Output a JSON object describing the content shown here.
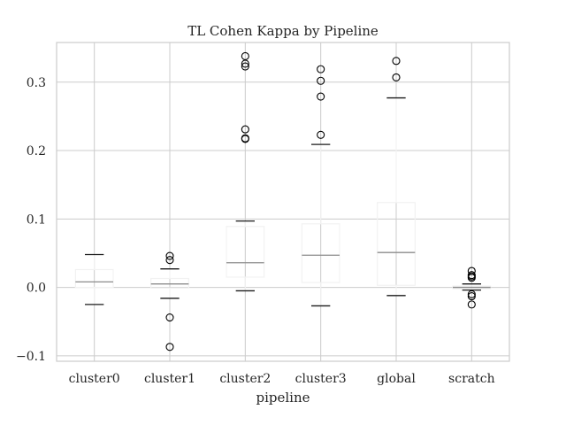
{
  "chart_data": {
    "type": "box",
    "title": "TL Cohen Kappa by Pipeline",
    "xlabel": "pipeline",
    "ylabel": "",
    "ylim": [
      -0.108,
      0.358
    ],
    "yticks": [
      "−0.1",
      "0.0",
      "0.1",
      "0.2",
      "0.3"
    ],
    "ytick_values": [
      -0.1,
      0.0,
      0.1,
      0.2,
      0.3
    ],
    "grid": true,
    "categories": [
      "cluster0",
      "cluster1",
      "cluster2",
      "cluster3",
      "global",
      "scratch"
    ],
    "boxes": [
      {
        "category": "cluster0",
        "whisker_low": -0.025,
        "q1": 0.0,
        "median": 0.008,
        "q3": 0.026,
        "whisker_high": 0.048,
        "outliers": []
      },
      {
        "category": "cluster1",
        "whisker_low": -0.016,
        "q1": -0.001,
        "median": 0.005,
        "q3": 0.013,
        "whisker_high": 0.027,
        "outliers": [
          0.046,
          0.04,
          -0.044,
          -0.087
        ]
      },
      {
        "category": "cluster2",
        "whisker_low": -0.005,
        "q1": 0.015,
        "median": 0.036,
        "q3": 0.089,
        "whisker_high": 0.097,
        "outliers": [
          0.338,
          0.327,
          0.323,
          0.231,
          0.218,
          0.217
        ]
      },
      {
        "category": "cluster3",
        "whisker_low": -0.027,
        "q1": 0.007,
        "median": 0.047,
        "q3": 0.093,
        "whisker_high": 0.209,
        "outliers": [
          0.319,
          0.302,
          0.279,
          0.223
        ]
      },
      {
        "category": "global",
        "whisker_low": -0.012,
        "q1": 0.003,
        "median": 0.051,
        "q3": 0.124,
        "whisker_high": 0.277,
        "outliers": [
          0.331,
          0.307
        ]
      },
      {
        "category": "scratch",
        "whisker_low": -0.004,
        "q1": -0.002,
        "median": 0.0,
        "q3": 0.002,
        "whisker_high": 0.005,
        "outliers": [
          0.024,
          0.018,
          0.016,
          0.014,
          -0.01,
          -0.013,
          -0.025
        ]
      }
    ],
    "colors": {
      "box": "#f2f2f2",
      "median": "#8c8c8c",
      "whisker_cap": "#1a1a1a",
      "outlier": "#000000",
      "grid": "#cccccc",
      "frame": "#cccccc",
      "text": "#262626"
    }
  }
}
